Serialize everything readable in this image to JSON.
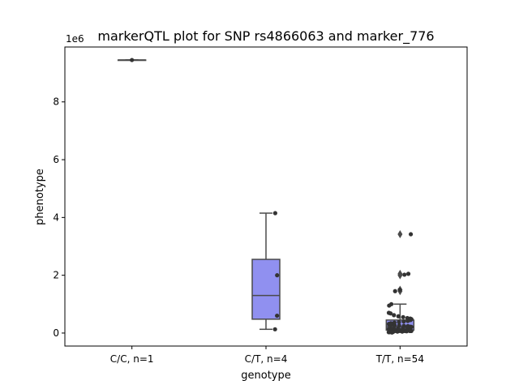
{
  "chart_data": {
    "type": "box",
    "title": "markerQTL plot for SNP rs4866063 and marker_776",
    "xlabel": "genotype",
    "ylabel": "phenotype",
    "y_multiplier_label": "1e6",
    "ylim": [
      -0.45,
      9.9
    ],
    "yticks": [
      0,
      2,
      4,
      6,
      8
    ],
    "categories": [
      "C/C, n=1",
      "C/T, n=4",
      "T/T, n=54"
    ],
    "box_color": "#9090f0",
    "box_stats": [
      {
        "q1": 9.45,
        "median": 9.45,
        "q3": 9.45,
        "whisker_low": 9.45,
        "whisker_high": 9.45,
        "outliers": []
      },
      {
        "q1": 0.48,
        "median": 1.3,
        "q3": 2.55,
        "whisker_low": 0.13,
        "whisker_high": 4.15,
        "outliers": []
      },
      {
        "q1": 0.1,
        "median": 0.22,
        "q3": 0.45,
        "whisker_low": 0.02,
        "whisker_high": 1.0,
        "outliers": [
          3.42,
          2.05,
          2.0,
          1.5,
          1.45
        ]
      }
    ],
    "points": [
      [
        9.45
      ],
      [
        4.15,
        2.0,
        0.6,
        0.13
      ],
      [
        3.42,
        2.05,
        2.02,
        1.5,
        1.45,
        1.0,
        0.95,
        0.7,
        0.68,
        0.62,
        0.58,
        0.55,
        0.52,
        0.5,
        0.48,
        0.45,
        0.42,
        0.4,
        0.38,
        0.36,
        0.34,
        0.32,
        0.3,
        0.28,
        0.27,
        0.26,
        0.25,
        0.24,
        0.22,
        0.21,
        0.2,
        0.19,
        0.18,
        0.17,
        0.16,
        0.15,
        0.14,
        0.13,
        0.12,
        0.11,
        0.1,
        0.09,
        0.09,
        0.08,
        0.07,
        0.07,
        0.06,
        0.05,
        0.05,
        0.04,
        0.04,
        0.03,
        0.03,
        0.02
      ]
    ]
  }
}
